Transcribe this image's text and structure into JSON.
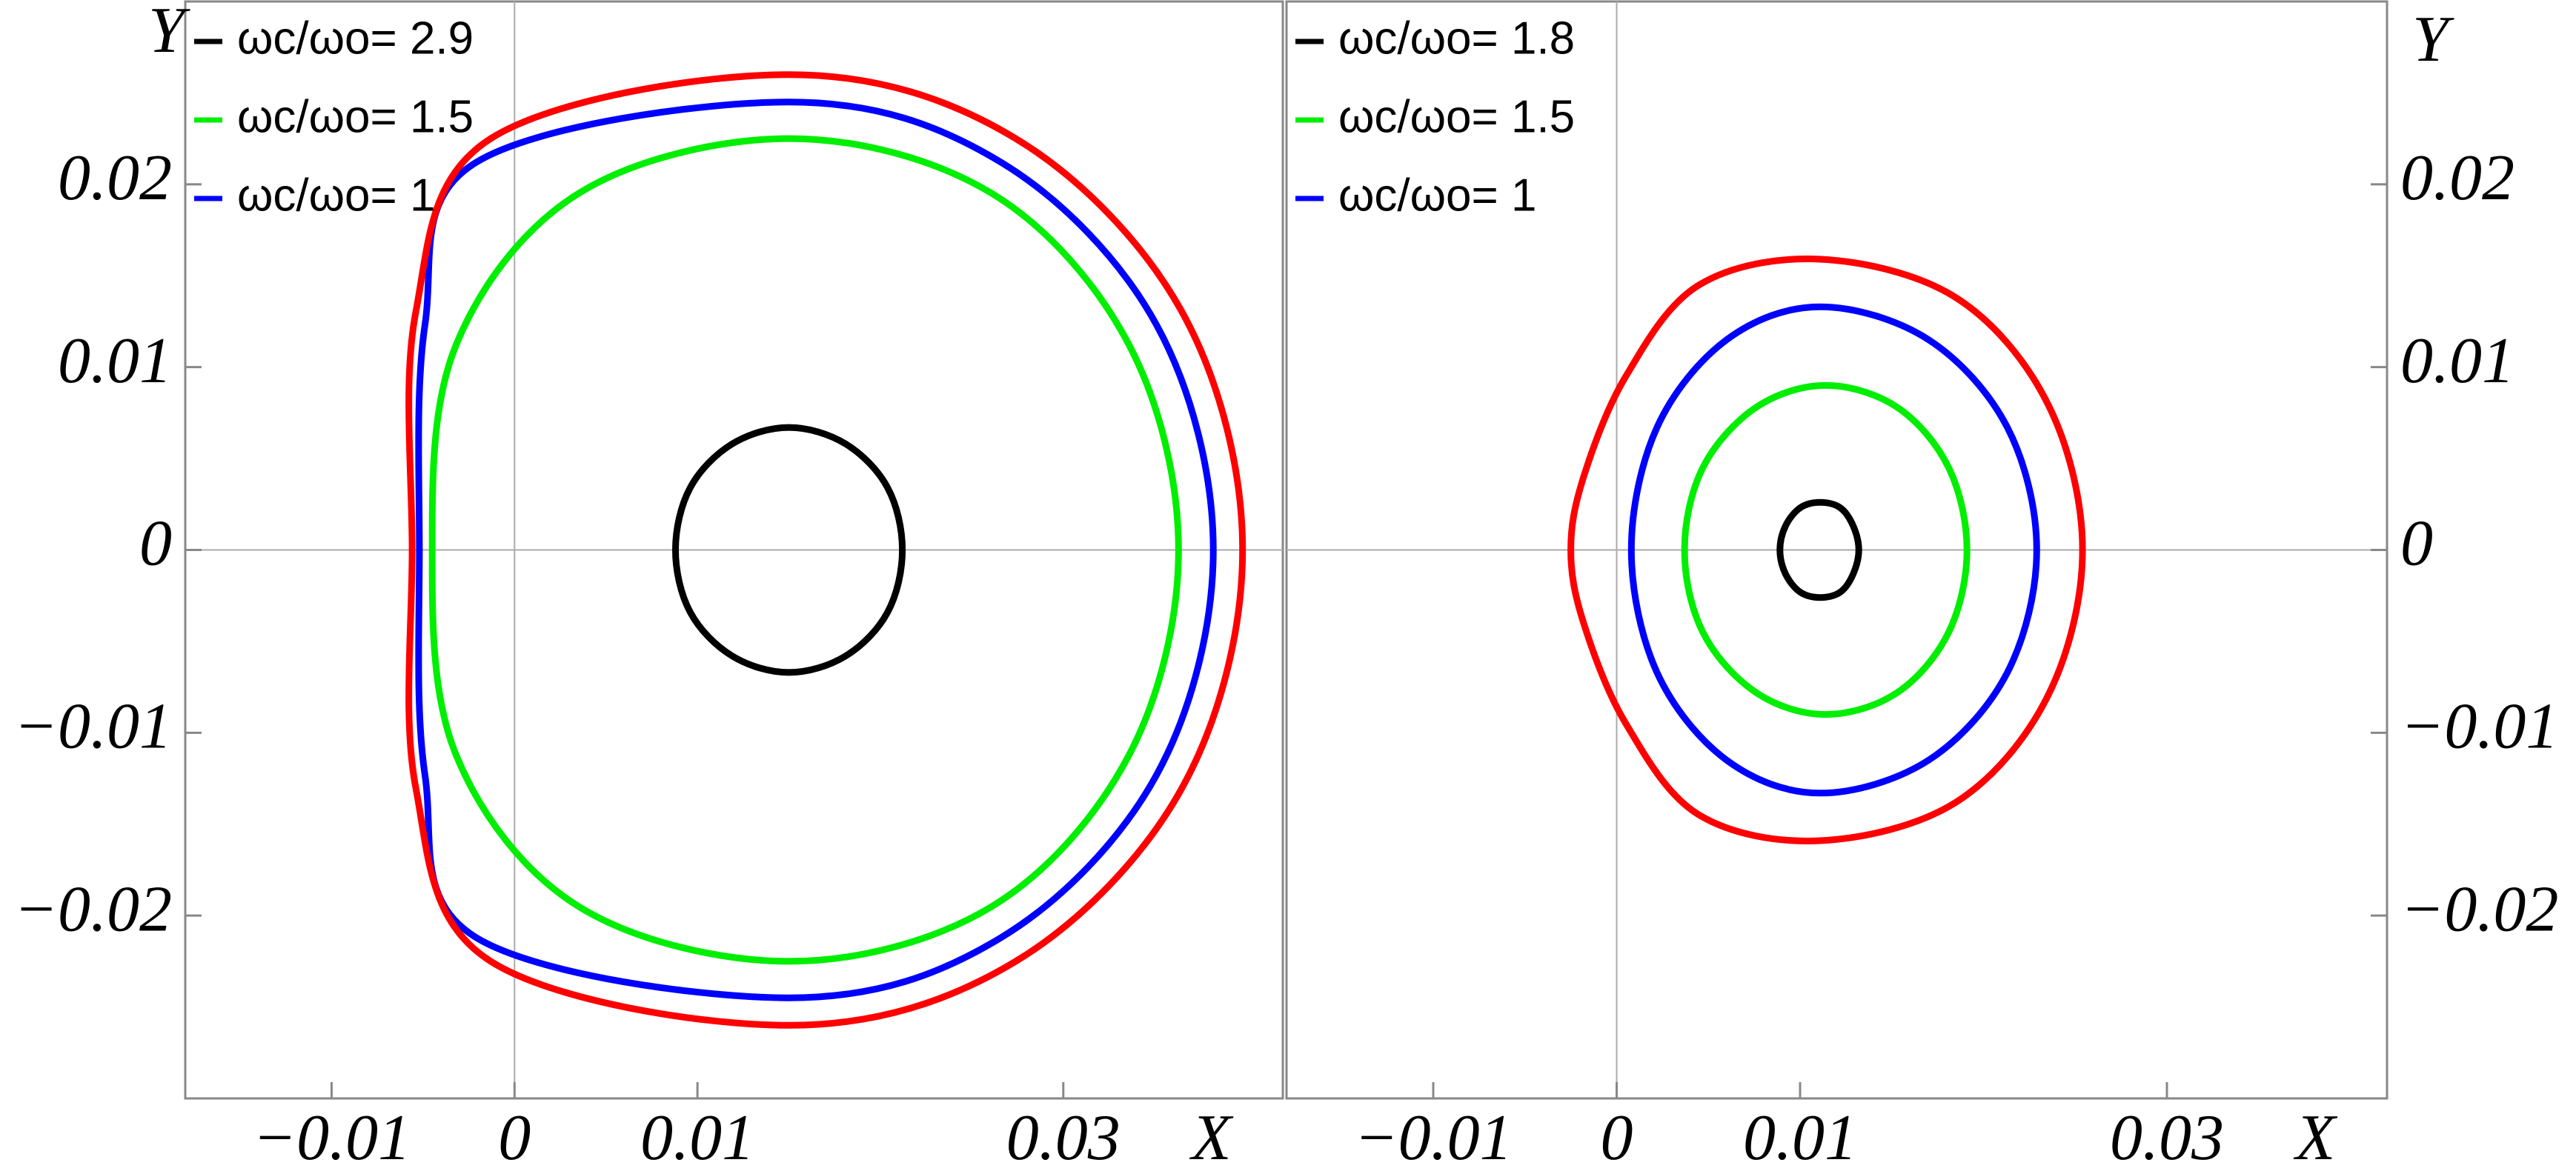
{
  "chart_data": [
    {
      "type": "line",
      "x_label": "X",
      "y_label": "Y",
      "y_axis_side": "left",
      "xlim": [
        -0.018,
        0.042
      ],
      "ylim": [
        -0.03,
        0.03
      ],
      "xticks": [
        {
          "value": -0.01,
          "label": "−0.01"
        },
        0,
        0.01,
        0.03
      ],
      "yticks": [
        {
          "value": -0.02,
          "label": "−0.02"
        },
        {
          "value": -0.01,
          "label": "−0.01"
        },
        0,
        0.01,
        0.02
      ],
      "series": [
        {
          "name": "ωc/ωo= 2.9",
          "color": "#000000",
          "x": [
            0.0212,
            0.0204,
            0.0181,
            0.015,
            0.0119,
            0.0096,
            0.0088,
            0.0096,
            0.0119,
            0.015,
            0.0181,
            0.0204,
            0.0212
          ],
          "values": [
            0,
            0.0034,
            0.0058,
            0.0067,
            0.0058,
            0.0034,
            0,
            -0.0034,
            -0.0058,
            -0.0067,
            -0.0058,
            -0.0034,
            0
          ]
        },
        {
          "name": "ωc/ωo= 1.5",
          "color": "#00ee00",
          "x": [
            0.0363,
            0.0336,
            0.0261,
            0.015,
            0.0035,
            -0.0032,
            -0.0045,
            -0.0032,
            0.0035,
            0.015,
            0.0261,
            0.0336,
            0.0363
          ],
          "values": [
            0,
            0.0112,
            0.0195,
            0.0225,
            0.0195,
            0.0112,
            0,
            -0.0112,
            -0.0195,
            -0.0225,
            -0.0195,
            -0.0112,
            0
          ]
        },
        {
          "name": "ωc/ωo= 1",
          "color": "#0000ff",
          "x": [
            0.0382,
            0.0351,
            0.0266,
            0.015,
            -0.0021,
            -0.0049,
            -0.0052,
            -0.0049,
            -0.0021,
            0.015,
            0.0266,
            0.0351,
            0.0382
          ],
          "values": [
            0,
            0.0123,
            0.0212,
            0.0245,
            0.0212,
            0.0123,
            0,
            -0.0123,
            -0.0212,
            -0.0245,
            -0.0212,
            -0.0123,
            0
          ]
        },
        {
          "color": "#ff0000",
          "x": [
            0.0398,
            0.0365,
            0.0274,
            0.015,
            -0.0013,
            -0.0054,
            -0.0056,
            -0.0054,
            -0.0013,
            0.015,
            0.0274,
            0.0365,
            0.0398
          ],
          "values": [
            0,
            0.013,
            0.0225,
            0.026,
            0.0225,
            0.013,
            0,
            -0.013,
            -0.0225,
            -0.026,
            -0.0225,
            -0.013,
            0
          ]
        }
      ]
    },
    {
      "type": "line",
      "x_label": "X",
      "y_label": "Y",
      "y_axis_side": "right",
      "xlim": [
        -0.018,
        0.042
      ],
      "ylim": [
        -0.03,
        0.03
      ],
      "xticks": [
        {
          "value": -0.01,
          "label": "−0.01"
        },
        0,
        0.01,
        0.03
      ],
      "yticks": [
        {
          "value": -0.02,
          "label": "−0.02"
        },
        {
          "value": -0.01,
          "label": "−0.01"
        },
        0,
        0.01,
        0.02
      ],
      "series": [
        {
          "name": "ωc/ωo= 1.8",
          "color": "#000000",
          "x": [
            0.0132,
            0.0129,
            0.0122,
            0.0111,
            0.01,
            0.0092,
            0.0089,
            0.0092,
            0.01,
            0.0111,
            0.0122,
            0.0129,
            0.0132
          ],
          "values": [
            0,
            0.0013,
            0.0023,
            0.0026,
            0.0023,
            0.0013,
            0,
            -0.0013,
            -0.0023,
            -0.0026,
            -0.0023,
            -0.0013,
            0
          ]
        },
        {
          "name": "ωc/ωo= 1.5",
          "color": "#00ee00",
          "x": [
            0.0191,
            0.0181,
            0.0153,
            0.0114,
            0.0076,
            0.0047,
            0.0037,
            0.0047,
            0.0076,
            0.0114,
            0.0153,
            0.0181,
            0.0191
          ],
          "values": [
            0,
            0.0045,
            0.0078,
            0.009,
            0.0078,
            0.0045,
            0,
            -0.0045,
            -0.0078,
            -0.009,
            -0.0078,
            -0.0045,
            0
          ]
        },
        {
          "name": "ωc/ωo= 1",
          "color": "#0000ff",
          "x": [
            0.0229,
            0.0213,
            0.017,
            0.0111,
            0.006,
            0.0022,
            0.0008,
            0.0022,
            0.006,
            0.0111,
            0.017,
            0.0213,
            0.0229
          ],
          "values": [
            0,
            0.0067,
            0.0115,
            0.0133,
            0.0115,
            0.0067,
            0,
            -0.0067,
            -0.0115,
            -0.0133,
            -0.0115,
            -0.0067,
            0
          ]
        },
        {
          "color": "#ff0000",
          "x": [
            0.0254,
            0.0235,
            0.0185,
            0.0111,
            0.0045,
            0.0005,
            -0.0018,
            -0.0025,
            -0.0018,
            0.0005,
            0.0045,
            0.0111,
            0.0185,
            0.0235,
            0.0254
          ],
          "values": [
            0,
            0.008,
            0.0138,
            0.0159,
            0.0145,
            0.0095,
            0.004,
            0,
            -0.004,
            -0.0095,
            -0.0145,
            -0.0159,
            -0.0138,
            -0.008,
            0
          ]
        }
      ]
    }
  ]
}
